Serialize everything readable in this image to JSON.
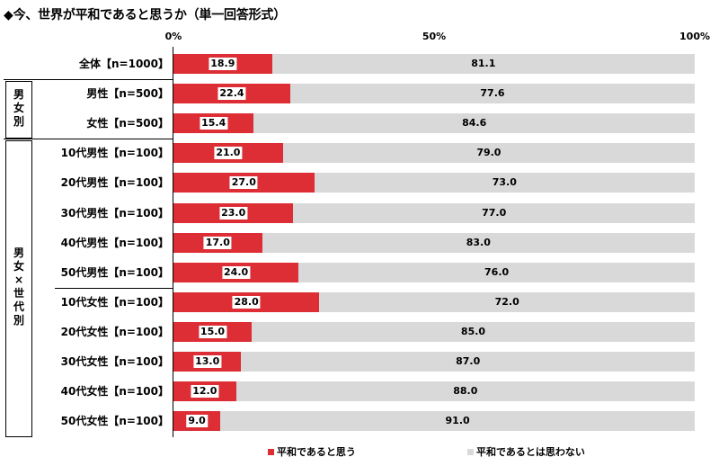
{
  "title": "◆今、世界が平和であると思うか（単一回答形式）",
  "chart_data": {
    "type": "bar",
    "orientation": "horizontal",
    "stacked": true,
    "percent_scale": true,
    "xlim": [
      0,
      100
    ],
    "ticks": [
      "0%",
      "50%",
      "100%"
    ],
    "tick_values": [
      0,
      50,
      100
    ],
    "legend_placement": "bottom",
    "colors": {
      "agree": "#dc2e34",
      "disagree": "#d9d9d9"
    },
    "categories": [
      "全体【n=1000】",
      "男性【n=500】",
      "女性【n=500】",
      "10代男性【n=100】",
      "20代男性【n=100】",
      "30代男性【n=100】",
      "40代男性【n=100】",
      "50代男性【n=100】",
      "10代女性【n=100】",
      "20代女性【n=100】",
      "30代女性【n=100】",
      "40代女性【n=100】",
      "50代女性【n=100】"
    ],
    "series": [
      {
        "name": "平和であると思う",
        "values": [
          18.9,
          22.4,
          15.4,
          21.0,
          27.0,
          23.0,
          17.0,
          24.0,
          28.0,
          15.0,
          13.0,
          12.0,
          9.0
        ],
        "labels": [
          "18.9",
          "22.4",
          "15.4",
          "21.0",
          "27.0",
          "23.0",
          "17.0",
          "24.0",
          "28.0",
          "15.0",
          "13.0",
          "12.0",
          "9.0"
        ]
      },
      {
        "name": "平和であるとは思わない",
        "values": [
          81.1,
          77.6,
          84.6,
          79.0,
          73.0,
          77.0,
          83.0,
          76.0,
          72.0,
          85.0,
          87.0,
          88.0,
          91.0
        ],
        "labels": [
          "81.1",
          "77.6",
          "84.6",
          "79.0",
          "73.0",
          "77.0",
          "83.0",
          "76.0",
          "72.0",
          "85.0",
          "87.0",
          "88.0",
          "91.0"
        ]
      }
    ],
    "groups": [
      {
        "label": [
          "男",
          "女",
          "別"
        ]
      },
      {
        "label": [
          "男",
          "女",
          "×",
          "世",
          "代",
          "別"
        ]
      }
    ]
  }
}
